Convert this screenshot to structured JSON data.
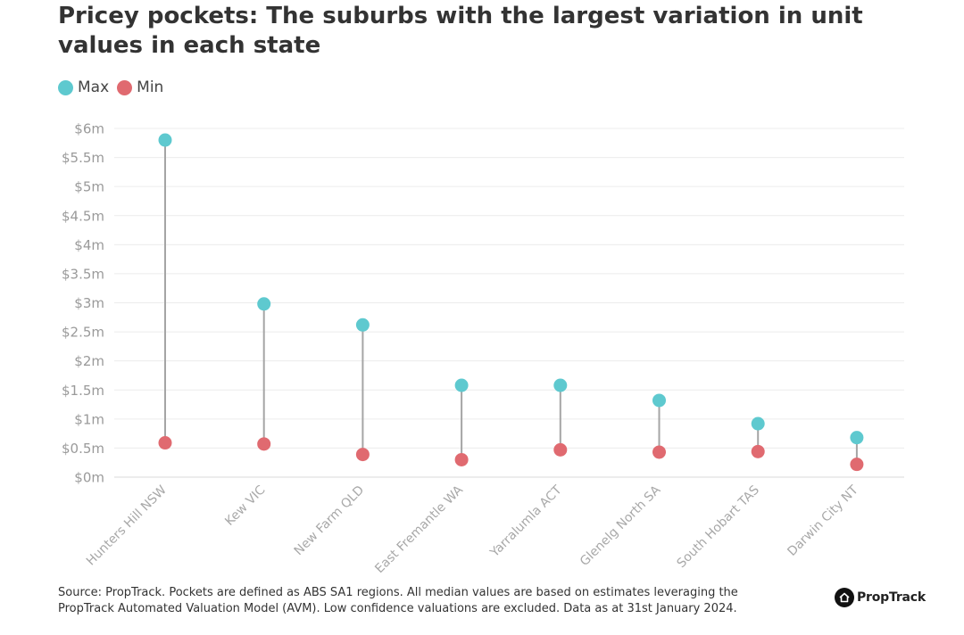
{
  "header": {
    "title": "Pricey pockets: The suburbs with the largest variation in unit values in each state"
  },
  "legend": {
    "items": [
      {
        "label": "Max",
        "color": "#5ec9cf"
      },
      {
        "label": "Min",
        "color": "#e06a70"
      }
    ]
  },
  "chart_data": {
    "type": "dumbbell",
    "title": "Pricey pockets: The suburbs with the largest variation in unit values in each state",
    "xlabel": "",
    "ylabel": "",
    "ylim": [
      0,
      6
    ],
    "y_unit": "$m",
    "y_ticks": [
      0,
      0.5,
      1,
      1.5,
      2,
      2.5,
      3,
      3.5,
      4,
      4.5,
      5,
      5.5,
      6
    ],
    "y_tick_labels": [
      "$0m",
      "$0.5m",
      "$1m",
      "$1.5m",
      "$2m",
      "$2.5m",
      "$3m",
      "$3.5m",
      "$4m",
      "$4.5m",
      "$5m",
      "$5.5m",
      "$6m"
    ],
    "grid": true,
    "legend_position": "top-left",
    "categories": [
      "Hunters Hill NSW",
      "Kew VIC",
      "New Farm QLD",
      "East Fremantle WA",
      "Yarralumla ACT",
      "Glenelg North SA",
      "South Hobart TAS",
      "Darwin City NT"
    ],
    "series": [
      {
        "name": "Max",
        "color": "#5ec9cf",
        "values": [
          5.8,
          2.98,
          2.62,
          1.58,
          1.58,
          1.32,
          0.92,
          0.68
        ]
      },
      {
        "name": "Min",
        "color": "#e06a70",
        "values": [
          0.59,
          0.57,
          0.39,
          0.3,
          0.47,
          0.43,
          0.44,
          0.22
        ]
      }
    ]
  },
  "footer": {
    "source": "Source: PropTrack. Pockets are defined as ABS SA1 regions. All median values are based on estimates leveraging the PropTrack Automated Valuation Model (AVM). Low confidence valuations are excluded. Data as at 31st January 2024.",
    "logo_text": "PropTrack",
    "logo_icon": "house-icon"
  }
}
